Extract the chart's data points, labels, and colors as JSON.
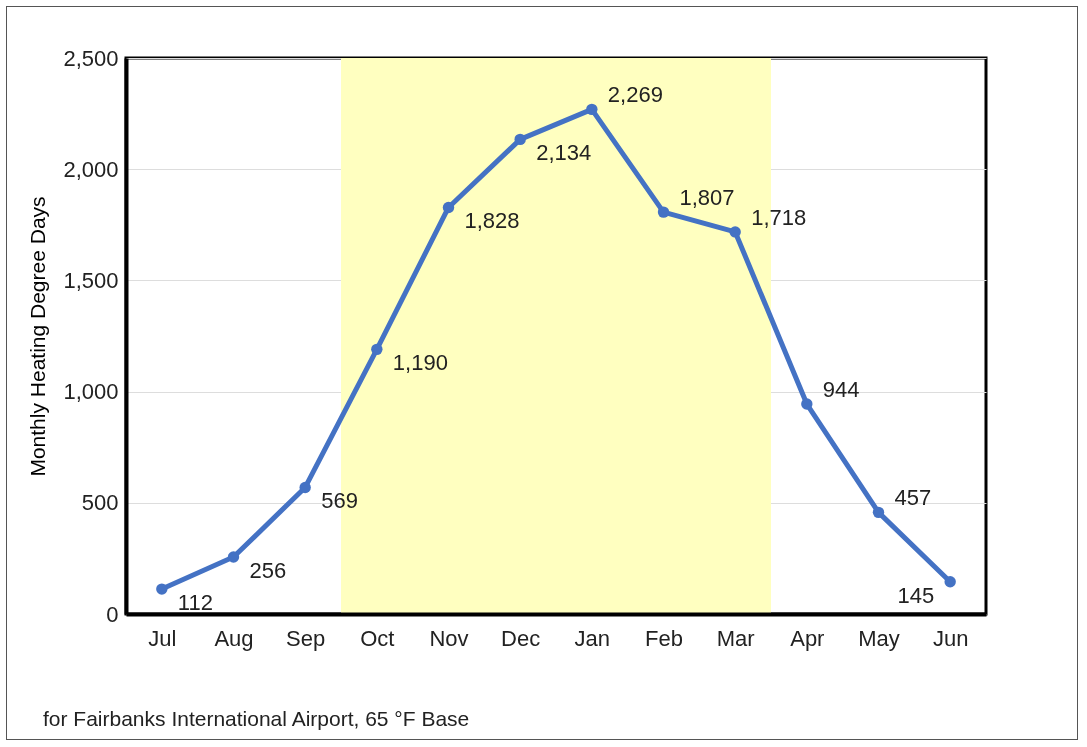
{
  "chart_data": {
    "type": "line",
    "ylabel": "Monthly Heating Degree Days",
    "categories": [
      "Jul",
      "Aug",
      "Sep",
      "Oct",
      "Nov",
      "Dec",
      "Jan",
      "Feb",
      "Mar",
      "Apr",
      "May",
      "Jun"
    ],
    "series": [
      {
        "color": "#4472c4",
        "values": [
          112,
          256,
          569,
          1190,
          1828,
          2134,
          2269,
          1807,
          1718,
          944,
          457,
          145
        ],
        "value_labels": [
          "112",
          "256",
          "569",
          "1,190",
          "1,828",
          "2,134",
          "2,269",
          "1,807",
          "1,718",
          "944",
          "457",
          "145"
        ]
      }
    ],
    "ylim": [
      0,
      2500
    ],
    "yticks": [
      0,
      500,
      {
        "value": 1000,
        "label": "1,000"
      },
      {
        "value": 1500,
        "label": "1,500"
      },
      {
        "value": 2000,
        "label": "2,000"
      },
      {
        "value": 2500,
        "label": "2,500"
      }
    ],
    "grid": "y",
    "marker": "circle",
    "line_style": "solid",
    "bands": [
      {
        "axis": "x",
        "from": "Oct",
        "to": "Mar",
        "color": "#ffffc0"
      }
    ],
    "annotations": [
      "for Fairbanks International Airport, 65 °F Base"
    ]
  }
}
